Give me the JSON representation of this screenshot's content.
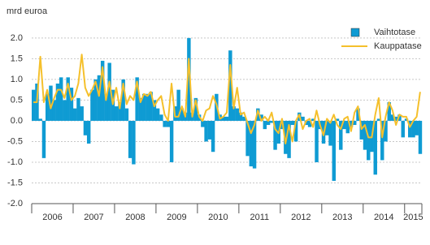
{
  "chart_data": {
    "type": "bar",
    "y_label": "mrd euroa",
    "categories": [
      "2006",
      null,
      null,
      null,
      null,
      null,
      null,
      null,
      null,
      null,
      null,
      null,
      "2007",
      null,
      null,
      null,
      null,
      null,
      null,
      null,
      null,
      null,
      null,
      null,
      "2008",
      null,
      null,
      null,
      null,
      null,
      null,
      null,
      null,
      null,
      null,
      null,
      "2009",
      null,
      null,
      null,
      null,
      null,
      null,
      null,
      null,
      null,
      null,
      null,
      "2010",
      null,
      null,
      null,
      null,
      null,
      null,
      null,
      null,
      null,
      null,
      null,
      "2011",
      null,
      null,
      null,
      null,
      null,
      null,
      null,
      null,
      null,
      null,
      null,
      "2012",
      null,
      null,
      null,
      null,
      null,
      null,
      null,
      null,
      null,
      null,
      null,
      "2013",
      null,
      null,
      null,
      null,
      null,
      null,
      null,
      null,
      null,
      null,
      null,
      "2014",
      null,
      null,
      null,
      null,
      null,
      null,
      null,
      null,
      null,
      null,
      null,
      "2015",
      null,
      null,
      null,
      null
    ],
    "series": [
      {
        "name": "Vaihtotase",
        "type": "bar",
        "color": "#0f9bd3",
        "values": [
          0.75,
          0.9,
          0.05,
          -0.9,
          0.65,
          0.85,
          0.5,
          0.9,
          1.05,
          0.5,
          1.05,
          0.8,
          0.3,
          0.55,
          0.35,
          -0.35,
          -0.55,
          0.75,
          1.0,
          1.1,
          1.45,
          0.65,
          1.4,
          0.75,
          0.35,
          0.45,
          1.0,
          0.3,
          -0.9,
          -1.05,
          1.05,
          0.55,
          0.65,
          0.65,
          0.7,
          0.5,
          0.3,
          0.15,
          -0.15,
          -0.15,
          -1.0,
          0.35,
          0.75,
          0.3,
          0.2,
          2.0,
          0.2,
          0.55,
          0.15,
          -0.15,
          -0.5,
          -0.45,
          -0.75,
          0.65,
          0.15,
          0.1,
          0.1,
          1.7,
          0.35,
          0.3,
          0.2,
          0.1,
          -0.85,
          -1.1,
          -1.15,
          0.3,
          0.15,
          -0.2,
          -0.1,
          -0.05,
          -0.7,
          -0.55,
          -0.2,
          -0.8,
          -0.9,
          -0.1,
          -0.5,
          0.2,
          0.1,
          -0.1,
          -0.15,
          0.05,
          -1.0,
          -0.2,
          -0.55,
          -0.35,
          -0.6,
          -1.45,
          0.05,
          -0.7,
          -0.2,
          -0.3,
          -0.15,
          -0.1,
          0.3,
          -0.45,
          -0.7,
          -0.95,
          -0.75,
          -1.3,
          0.05,
          -0.95,
          -0.5,
          0.45,
          0.15,
          0.1,
          0.15,
          -0.4,
          0.05,
          -0.4,
          -0.4,
          -0.35,
          -0.8
        ]
      },
      {
        "name": "Kauppatase",
        "type": "line",
        "color": "#f5c02c",
        "values": [
          0.45,
          0.45,
          1.55,
          0.45,
          0.75,
          0.3,
          0.55,
          0.75,
          0.75,
          0.55,
          0.9,
          0.5,
          0.6,
          0.9,
          1.6,
          0.8,
          0.6,
          0.75,
          0.95,
          0.6,
          1.3,
          0.5,
          0.95,
          0.4,
          0.8,
          0.3,
          0.9,
          0.4,
          0.6,
          0.5,
          0.95,
          0.45,
          0.65,
          0.6,
          0.7,
          0.35,
          0.5,
          0.6,
          0.15,
          0.0,
          0.9,
          0.1,
          0.1,
          0.35,
          0.1,
          1.5,
          0.1,
          0.5,
          0.1,
          0.0,
          0.25,
          0.3,
          0.6,
          0.4,
          0.05,
          0.1,
          0.2,
          1.35,
          0.3,
          0.8,
          0.15,
          0.2,
          -0.05,
          -0.3,
          -0.1,
          0.25,
          0.0,
          0.1,
          0.0,
          0.2,
          -0.2,
          -0.3,
          0.05,
          -0.55,
          -0.1,
          -0.5,
          0.0,
          0.15,
          -0.2,
          0.0,
          0.05,
          -0.15,
          0.25,
          -0.1,
          -0.35,
          0.05,
          -0.05,
          0.15,
          -0.1,
          -0.2,
          0.05,
          0.1,
          -0.25,
          0.2,
          0.35,
          -0.2,
          -0.1,
          -0.4,
          -0.4,
          0.15,
          0.55,
          -0.4,
          0.1,
          0.45,
          0.25,
          -0.1,
          0.15,
          0.1,
          0.1,
          -0.15,
          0.0,
          0.1,
          0.7
        ]
      }
    ],
    "ylim": [
      -2.0,
      2.35
    ],
    "yticks": [
      {
        "value": -2,
        "label": "-2.0"
      },
      {
        "value": -1.5,
        "label": "-1.5"
      },
      {
        "value": -1,
        "label": "-1.0"
      },
      {
        "value": -0.5,
        "label": "-0.5"
      },
      {
        "value": 0,
        "label": "0.0"
      },
      {
        "value": 0.5,
        "label": "0.5"
      },
      {
        "value": 1,
        "label": "1.0"
      },
      {
        "value": 1.5,
        "label": "1.5"
      },
      {
        "value": 2,
        "label": "2.0"
      }
    ],
    "grid": true,
    "legend": "upper right"
  }
}
